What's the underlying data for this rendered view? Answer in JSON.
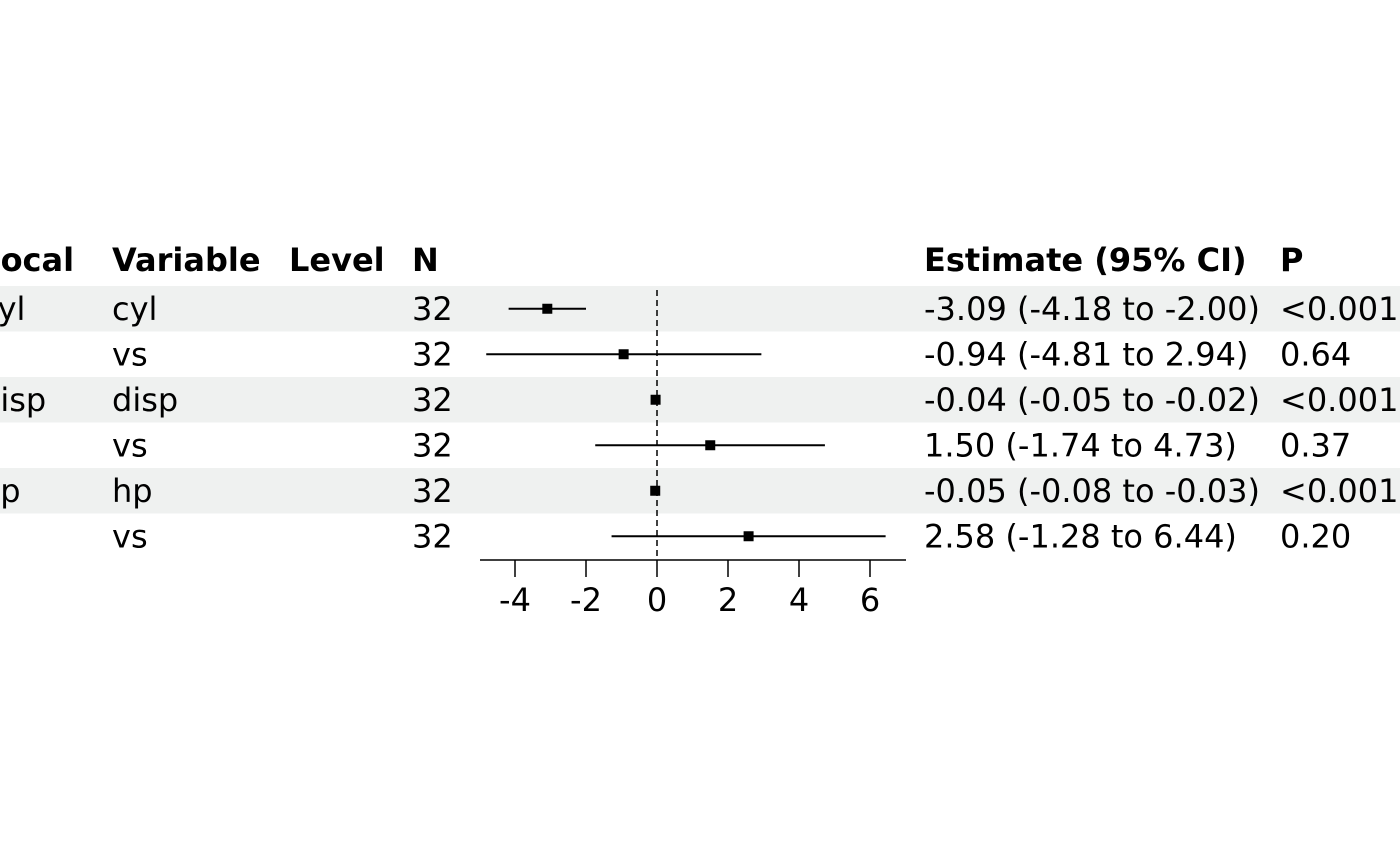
{
  "colors": {
    "stripe": "#eff1f0",
    "ink": "#000000",
    "background": "#ffffff"
  },
  "table": {
    "headers": {
      "focal": "Focal",
      "variable": "Variable",
      "level": "Level",
      "n": "N",
      "estimate": "Estimate (95% CI)",
      "p": "P"
    },
    "rows": [
      {
        "focal": "cyl",
        "variable": "cyl",
        "level": "",
        "n": "32",
        "estimate_text": "-3.09 (-4.18 to -2.00)",
        "p": "<0.001",
        "shaded": true
      },
      {
        "focal": "",
        "variable": "vs",
        "level": "",
        "n": "32",
        "estimate_text": "-0.94 (-4.81 to 2.94)",
        "p": "0.64",
        "shaded": false
      },
      {
        "focal": "disp",
        "variable": "disp",
        "level": "",
        "n": "32",
        "estimate_text": "-0.04 (-0.05 to -0.02)",
        "p": "<0.001",
        "shaded": true
      },
      {
        "focal": "",
        "variable": "vs",
        "level": "",
        "n": "32",
        "estimate_text": "1.50 (-1.74 to 4.73)",
        "p": "0.37",
        "shaded": false
      },
      {
        "focal": "hp",
        "variable": "hp",
        "level": "",
        "n": "32",
        "estimate_text": "-0.05 (-0.08 to -0.03)",
        "p": "<0.001",
        "shaded": true
      },
      {
        "focal": "",
        "variable": "vs",
        "level": "",
        "n": "32",
        "estimate_text": "2.58 (-1.28 to 6.44)",
        "p": "0.20",
        "shaded": false
      }
    ]
  },
  "chart_data": {
    "type": "scatter",
    "subtype": "forest-plot",
    "title": "",
    "xlabel": "",
    "ylabel": "",
    "xlim": [
      -5,
      7
    ],
    "xticks": [
      -4,
      -2,
      0,
      2,
      4,
      6
    ],
    "xtick_labels": [
      "-4",
      "-2",
      "0",
      "2",
      "4",
      "6"
    ],
    "reference_line": 0,
    "reference_line_style": "dashed",
    "grid": false,
    "legend": "none",
    "series": [
      {
        "points": [
          {
            "label": "cyl",
            "estimate": -3.09,
            "lower": -4.18,
            "upper": -2.0
          },
          {
            "label": "vs",
            "estimate": -0.94,
            "lower": -4.81,
            "upper": 2.94
          },
          {
            "label": "disp",
            "estimate": -0.04,
            "lower": -0.05,
            "upper": -0.02
          },
          {
            "label": "vs",
            "estimate": 1.5,
            "lower": -1.74,
            "upper": 4.73
          },
          {
            "label": "hp",
            "estimate": -0.05,
            "lower": -0.08,
            "upper": -0.03
          },
          {
            "label": "vs",
            "estimate": 2.58,
            "lower": -1.28,
            "upper": 6.44
          }
        ]
      }
    ]
  }
}
